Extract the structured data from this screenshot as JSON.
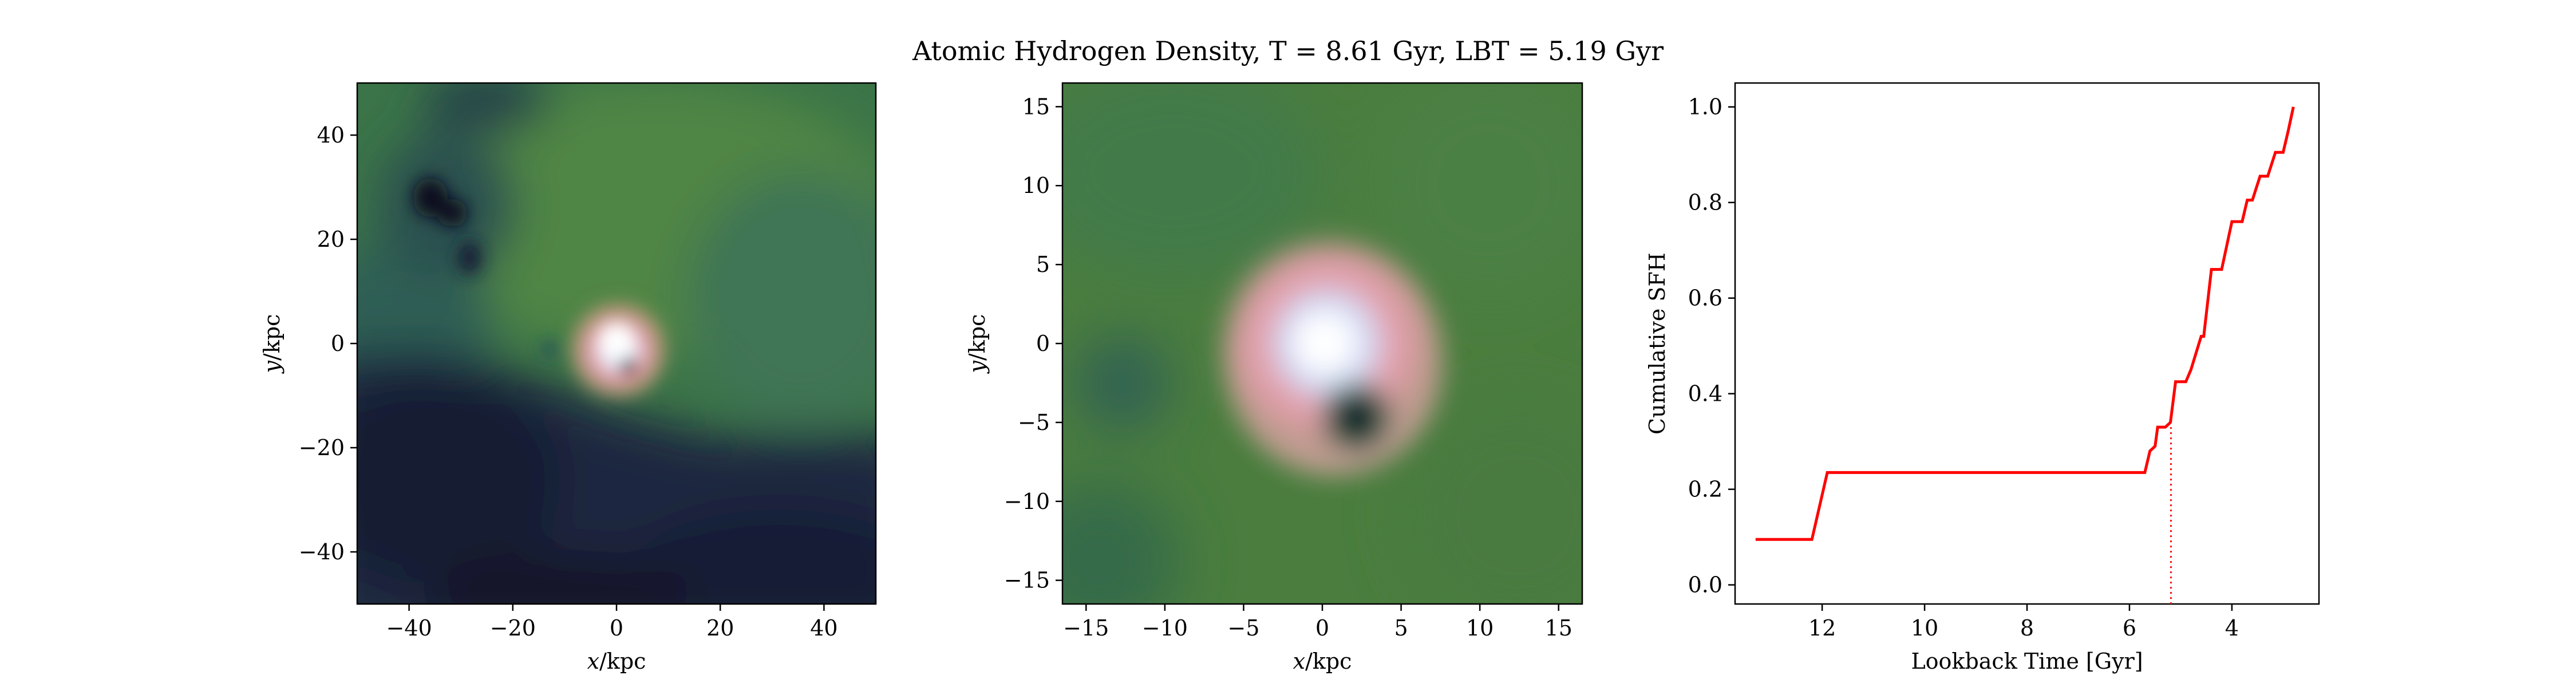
{
  "figure": {
    "title": "Atomic Hydrogen Density, T = 8.61 Gyr, LBT = 5.19 Gyr"
  },
  "chart_data": [
    {
      "type": "heatmap",
      "title": "",
      "xlabel": "x/kpc",
      "ylabel": "y/kpc",
      "xlim": [
        -50,
        50
      ],
      "ylim": [
        -50,
        50
      ],
      "xticks": [
        -40,
        -20,
        0,
        20,
        40
      ],
      "yticks": [
        -40,
        -20,
        0,
        20,
        40
      ],
      "xtick_labels": [
        "−40",
        "−20",
        "0",
        "20",
        "40"
      ],
      "ytick_labels": [
        "−40",
        "−20",
        "0",
        "20",
        "40"
      ],
      "colors": {
        "low": "#1a1530",
        "mid": "#3f7a45",
        "high": "#e9a0a8",
        "peak": "#ffffff"
      }
    },
    {
      "type": "heatmap",
      "title": "",
      "xlabel": "x/kpc",
      "ylabel": "y/kpc",
      "xlim": [
        -16.5,
        16.5
      ],
      "ylim": [
        -16.5,
        16.5
      ],
      "xticks": [
        -15,
        -10,
        -5,
        0,
        5,
        10,
        15
      ],
      "yticks": [
        -15,
        -10,
        -5,
        0,
        5,
        10,
        15
      ],
      "xtick_labels": [
        "−15",
        "−10",
        "−5",
        "0",
        "5",
        "10",
        "15"
      ],
      "ytick_labels": [
        "−15",
        "−10",
        "−5",
        "0",
        "5",
        "10",
        "15"
      ],
      "colors": {
        "low": "#1a1530",
        "mid": "#4a7d3e",
        "high": "#e9a0a8",
        "peak": "#ffffff"
      }
    },
    {
      "type": "line",
      "title": "",
      "xlabel": "Lookback Time [Gyr]",
      "ylabel": "Cumulative SFH",
      "xlim": [
        13.7,
        2.3
      ],
      "ylim": [
        -0.04,
        1.05
      ],
      "xticks": [
        12,
        10,
        8,
        6,
        4
      ],
      "xtick_labels": [
        "12",
        "10",
        "8",
        "6",
        "4"
      ],
      "yticks": [
        0.0,
        0.2,
        0.4,
        0.6,
        0.8,
        1.0
      ],
      "ytick_labels": [
        "0.0",
        "0.2",
        "0.4",
        "0.6",
        "0.8",
        "1.0"
      ],
      "series": [
        {
          "color": "#ff0000",
          "x": [
            13.3,
            12.2,
            11.9,
            5.7,
            5.6,
            5.5,
            5.45,
            5.3,
            5.2,
            5.1,
            4.9,
            4.8,
            4.6,
            4.55,
            4.4,
            4.35,
            4.2,
            4.0,
            3.8,
            3.7,
            3.6,
            3.45,
            3.3,
            3.15,
            3.0,
            2.9,
            2.8
          ],
          "y": [
            0.095,
            0.095,
            0.235,
            0.235,
            0.28,
            0.29,
            0.33,
            0.33,
            0.34,
            0.425,
            0.425,
            0.45,
            0.52,
            0.52,
            0.66,
            0.66,
            0.66,
            0.76,
            0.76,
            0.805,
            0.805,
            0.855,
            0.855,
            0.905,
            0.905,
            0.95,
            1.0
          ]
        }
      ],
      "marker_line": {
        "x": 5.19,
        "y": 0.33,
        "color": "#ff0000",
        "style": "dotted"
      },
      "grid": false,
      "legend": "none"
    }
  ]
}
